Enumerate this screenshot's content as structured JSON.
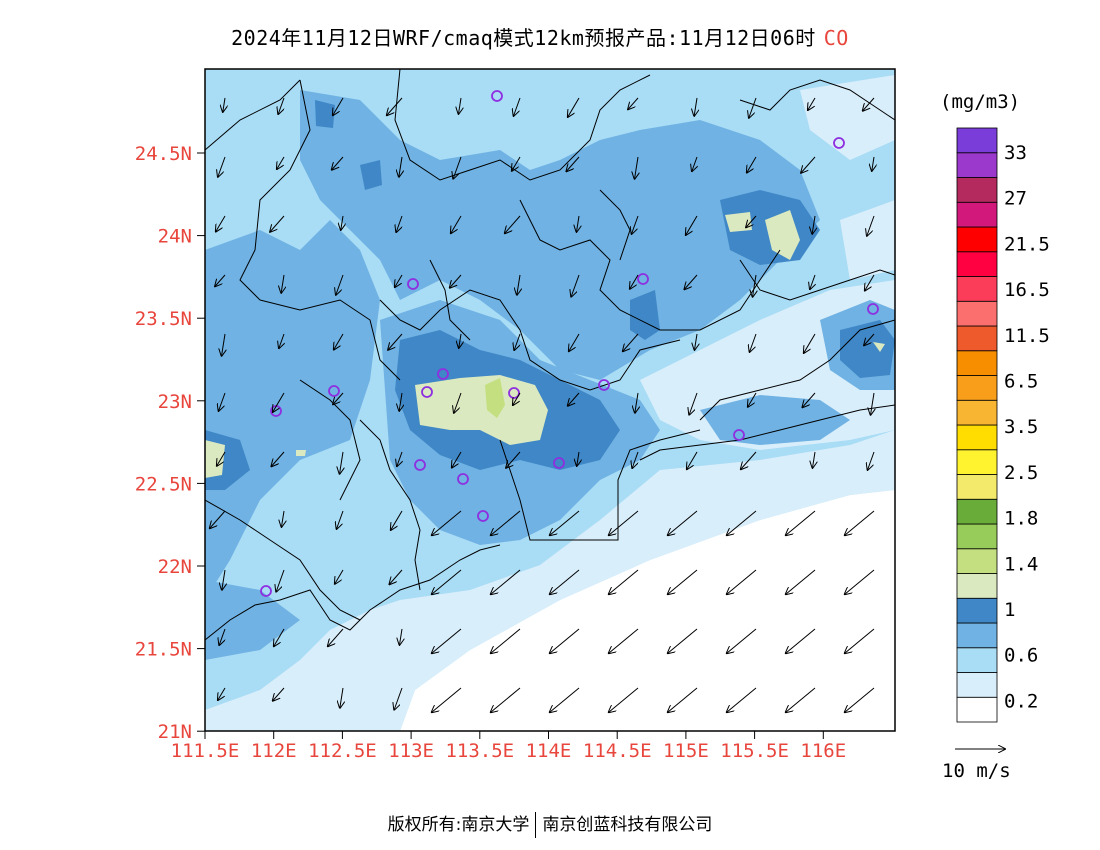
{
  "title": {
    "text": "2024年11月12日WRF/cmaq模式12km预报产品:11月12日06时",
    "species": "CO"
  },
  "colorbar": {
    "unit": "(mg/m3)",
    "levels": [
      "33",
      "27",
      "21.5",
      "16.5",
      "11.5",
      "6.5",
      "3.5",
      "2.5",
      "1.8",
      "1.4",
      "1",
      "0.6",
      "0.2"
    ],
    "colors": [
      "#ffffff",
      "#d9eefb",
      "#a9dcf5",
      "#6fb2e3",
      "#3f87c6",
      "#dbe9c0",
      "#c3df7f",
      "#97cc5a",
      "#6aac3a",
      "#f3e96a",
      "#fff32f",
      "#ffdd00",
      "#f7b531",
      "#f99e1a",
      "#f68e00",
      "#ee5a2b",
      "#fb6f6f",
      "#fb3d5a",
      "#ff0040",
      "#ff0000",
      "#d2187a",
      "#b42a5e",
      "#9b39cc",
      "#7b3dda"
    ]
  },
  "axes": {
    "lat_ticks": [
      "24.5N",
      "24N",
      "23.5N",
      "23N",
      "22.5N",
      "22N",
      "21.5N",
      "21N"
    ],
    "lon_ticks": [
      "111.5E",
      "112E",
      "112.5E",
      "113E",
      "113.5E",
      "114E",
      "114.5E",
      "115E",
      "115.5E",
      "116E"
    ]
  },
  "wind_legend": {
    "label": "10 m/s"
  },
  "footer": {
    "copyright": "版权所有:南京大学",
    "company": "南京创蓝科技有限公司"
  }
}
